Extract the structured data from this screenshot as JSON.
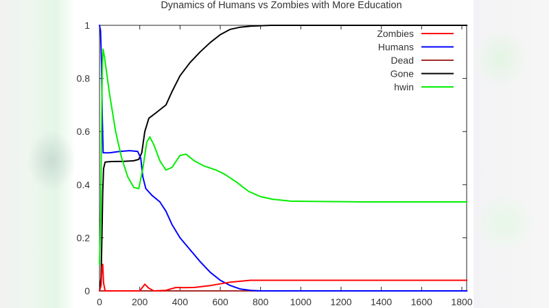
{
  "chart_data": {
    "type": "line",
    "title": "Dynamics of Humans vs Zombies with More Education",
    "xlabel": "",
    "ylabel": "",
    "xlim": [
      0,
      1825
    ],
    "ylim": [
      0,
      1
    ],
    "x_ticks": [
      "0",
      "200",
      "400",
      "600",
      "800",
      "1000",
      "1200",
      "1400",
      "1600",
      "1800"
    ],
    "y_ticks": [
      "0",
      "0.2",
      "0.4",
      "0.6",
      "0.8",
      "1"
    ],
    "grid": false,
    "legend_position": "top-right",
    "series": [
      {
        "name": "Zombies",
        "color": "#ff0000",
        "points": [
          [
            0,
            0
          ],
          [
            8,
            0.02
          ],
          [
            12,
            0.09
          ],
          [
            16,
            0.1
          ],
          [
            20,
            0.03
          ],
          [
            28,
            0
          ],
          [
            200,
            0
          ],
          [
            225,
            0.025
          ],
          [
            245,
            0.01
          ],
          [
            270,
            0
          ],
          [
            330,
            0.002
          ],
          [
            380,
            0.013
          ],
          [
            420,
            0.012
          ],
          [
            470,
            0.013
          ],
          [
            550,
            0.02
          ],
          [
            650,
            0.033
          ],
          [
            750,
            0.04
          ],
          [
            1000,
            0.04
          ],
          [
            1825,
            0.04
          ]
        ]
      },
      {
        "name": "Humans",
        "color": "#0000ff",
        "points": [
          [
            0,
            1
          ],
          [
            5,
            0.98
          ],
          [
            10,
            0.86
          ],
          [
            14,
            0.65
          ],
          [
            18,
            0.52
          ],
          [
            50,
            0.52
          ],
          [
            100,
            0.525
          ],
          [
            150,
            0.528
          ],
          [
            190,
            0.525
          ],
          [
            205,
            0.5
          ],
          [
            215,
            0.43
          ],
          [
            230,
            0.385
          ],
          [
            260,
            0.36
          ],
          [
            300,
            0.335
          ],
          [
            330,
            0.3
          ],
          [
            360,
            0.25
          ],
          [
            400,
            0.2
          ],
          [
            450,
            0.155
          ],
          [
            500,
            0.11
          ],
          [
            550,
            0.07
          ],
          [
            600,
            0.04
          ],
          [
            650,
            0.02
          ],
          [
            700,
            0.007
          ],
          [
            750,
            0.002
          ],
          [
            800,
            0
          ],
          [
            1825,
            0
          ]
        ]
      },
      {
        "name": "Dead",
        "color": "#a52a2a",
        "points": [
          [
            0,
            0
          ],
          [
            1825,
            0
          ]
        ]
      },
      {
        "name": "Gone",
        "color": "#000000",
        "points": [
          [
            0,
            0
          ],
          [
            8,
            0.05
          ],
          [
            12,
            0.2
          ],
          [
            16,
            0.37
          ],
          [
            20,
            0.46
          ],
          [
            28,
            0.485
          ],
          [
            60,
            0.487
          ],
          [
            120,
            0.488
          ],
          [
            170,
            0.49
          ],
          [
            195,
            0.495
          ],
          [
            210,
            0.52
          ],
          [
            225,
            0.6
          ],
          [
            245,
            0.65
          ],
          [
            280,
            0.67
          ],
          [
            330,
            0.7
          ],
          [
            360,
            0.75
          ],
          [
            400,
            0.81
          ],
          [
            450,
            0.86
          ],
          [
            500,
            0.9
          ],
          [
            550,
            0.935
          ],
          [
            600,
            0.965
          ],
          [
            650,
            0.985
          ],
          [
            700,
            0.993
          ],
          [
            750,
            0.997
          ],
          [
            850,
            1
          ],
          [
            1825,
            1
          ]
        ]
      },
      {
        "name": "hwin",
        "color": "#00ee00",
        "points": [
          [
            0,
            0.1
          ],
          [
            6,
            0.3
          ],
          [
            10,
            0.6
          ],
          [
            14,
            0.85
          ],
          [
            18,
            0.91
          ],
          [
            25,
            0.88
          ],
          [
            50,
            0.74
          ],
          [
            80,
            0.6
          ],
          [
            110,
            0.5
          ],
          [
            140,
            0.43
          ],
          [
            170,
            0.39
          ],
          [
            195,
            0.385
          ],
          [
            215,
            0.46
          ],
          [
            235,
            0.56
          ],
          [
            250,
            0.58
          ],
          [
            270,
            0.55
          ],
          [
            300,
            0.49
          ],
          [
            330,
            0.455
          ],
          [
            360,
            0.465
          ],
          [
            400,
            0.51
          ],
          [
            430,
            0.515
          ],
          [
            470,
            0.49
          ],
          [
            520,
            0.47
          ],
          [
            580,
            0.455
          ],
          [
            620,
            0.44
          ],
          [
            680,
            0.41
          ],
          [
            740,
            0.375
          ],
          [
            800,
            0.355
          ],
          [
            860,
            0.345
          ],
          [
            950,
            0.338
          ],
          [
            1050,
            0.337
          ],
          [
            1300,
            0.335
          ],
          [
            1825,
            0.335
          ]
        ]
      }
    ]
  },
  "title": "Dynamics of Humans vs Zombies with More Education",
  "legend": [
    {
      "label": "Zombies",
      "color": "#ff0000"
    },
    {
      "label": "Humans",
      "color": "#0000ff"
    },
    {
      "label": "Dead",
      "color": "#a52a2a"
    },
    {
      "label": "Gone",
      "color": "#000000"
    },
    {
      "label": "hwin",
      "color": "#00ee00"
    }
  ]
}
